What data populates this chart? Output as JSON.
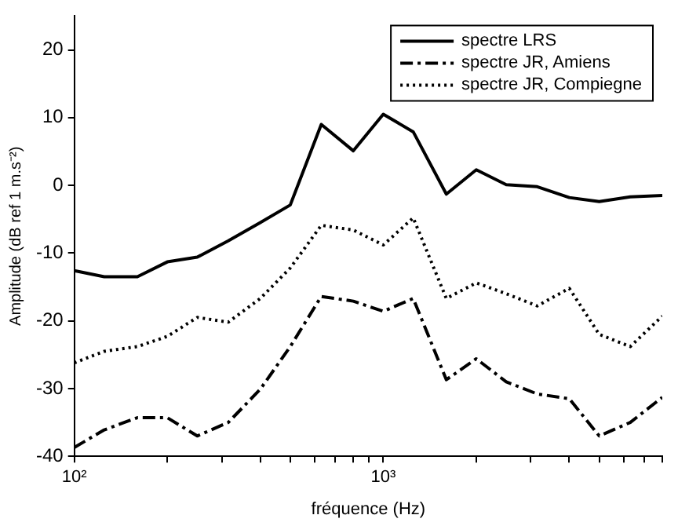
{
  "chart_data": {
    "type": "line",
    "xlabel": "fréquence (Hz)",
    "ylabel": "Amplitude (dB ref 1 m.s⁻²)",
    "x": [
      100,
      125,
      160,
      200,
      250,
      315,
      400,
      500,
      630,
      800,
      1000,
      1250,
      1600,
      2000,
      2500,
      3150,
      4000,
      5000,
      6300,
      8000
    ],
    "series": [
      {
        "name": "spectre LRS",
        "color": "#000000",
        "line_style": "solid",
        "values": [
          -12.6,
          -13.5,
          -13.5,
          -11.3,
          -10.6,
          -8.2,
          -5.5,
          -2.9,
          9.0,
          5.1,
          10.5,
          7.9,
          -1.3,
          2.3,
          0.1,
          -0.2,
          -1.8,
          -2.4,
          -1.7,
          -1.5
        ]
      },
      {
        "name": "spectre JR, Amiens",
        "color": "#000000",
        "line_style": "dashed",
        "values": [
          -38.7,
          -36.1,
          -34.3,
          -34.3,
          -37.0,
          -35.0,
          -30.1,
          -23.8,
          -16.4,
          -17.1,
          -18.6,
          -16.7,
          -28.7,
          -25.6,
          -29.0,
          -30.8,
          -31.5,
          -37.0,
          -35.0,
          -31.3
        ]
      },
      {
        "name": "spectre JR, Compiegne",
        "color": "#000000",
        "line_style": "dotted",
        "values": [
          -26.2,
          -24.5,
          -23.8,
          -22.3,
          -19.5,
          -20.2,
          -16.7,
          -12.2,
          -5.9,
          -6.6,
          -8.8,
          -4.8,
          -16.7,
          -14.4,
          -16.0,
          -17.8,
          -15.2,
          -22.0,
          -23.8,
          -19.3
        ]
      }
    ],
    "log": "x",
    "xlim": [
      100,
      8000
    ],
    "xticks": [
      {
        "value": 100,
        "label": "10²"
      },
      {
        "value": 200,
        "label": null
      },
      {
        "value": 300,
        "label": null
      },
      {
        "value": 400,
        "label": null
      },
      {
        "value": 500,
        "label": null
      },
      {
        "value": 600,
        "label": null
      },
      {
        "value": 700,
        "label": null
      },
      {
        "value": 800,
        "label": null
      },
      {
        "value": 900,
        "label": null
      },
      {
        "value": 1000,
        "label": "10³"
      },
      {
        "value": 2000,
        "label": null
      },
      {
        "value": 3000,
        "label": null
      },
      {
        "value": 4000,
        "label": null
      },
      {
        "value": 5000,
        "label": null
      },
      {
        "value": 6000,
        "label": null
      },
      {
        "value": 7000,
        "label": null
      },
      {
        "value": 8000,
        "label": null
      }
    ],
    "ylim": [
      -40,
      25
    ],
    "yticks": [
      -40,
      -30,
      -20,
      -10,
      0,
      10,
      20
    ],
    "grid": false,
    "legend": "top right",
    "marker": "none"
  }
}
